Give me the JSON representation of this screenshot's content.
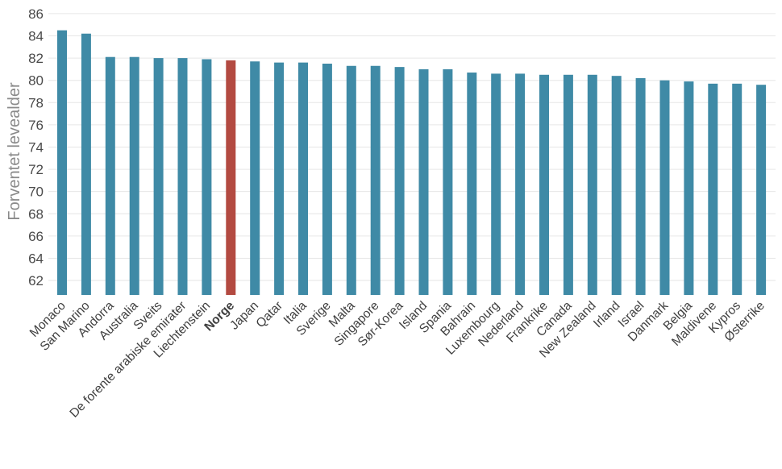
{
  "chart_data": {
    "type": "bar",
    "title": "",
    "xlabel": "",
    "ylabel": "Forventet levealder",
    "ylim": [
      60.7,
      86.5
    ],
    "yticks": [
      62,
      64,
      66,
      68,
      70,
      72,
      74,
      76,
      78,
      80,
      82,
      84,
      86
    ],
    "grid": true,
    "colors": {
      "default": "#3f8aa6",
      "highlight": "#b34a41"
    },
    "highlight_category": "Norge",
    "categories": [
      "Monaco",
      "San Marino",
      "Andorra",
      "Australia",
      "Sveits",
      "De forente arabiske emirater",
      "Liechtenstein",
      "Norge",
      "Japan",
      "Qatar",
      "Italia",
      "Sverige",
      "Malta",
      "Singapore",
      "Sør-Korea",
      "Island",
      "Spania",
      "Bahrain",
      "Luxembourg",
      "Nederland",
      "Frankrike",
      "Canada",
      "New Zealand",
      "Irland",
      "Israel",
      "Danmark",
      "Belgia",
      "Maldivene",
      "Kypros",
      "Østerrike"
    ],
    "values": [
      84.5,
      84.2,
      82.1,
      82.1,
      82.0,
      82.0,
      81.9,
      81.8,
      81.7,
      81.6,
      81.6,
      81.5,
      81.3,
      81.3,
      81.2,
      81.0,
      81.0,
      80.7,
      80.6,
      80.6,
      80.5,
      80.5,
      80.5,
      80.4,
      80.2,
      80.0,
      79.9,
      79.7,
      79.7,
      79.6
    ]
  }
}
